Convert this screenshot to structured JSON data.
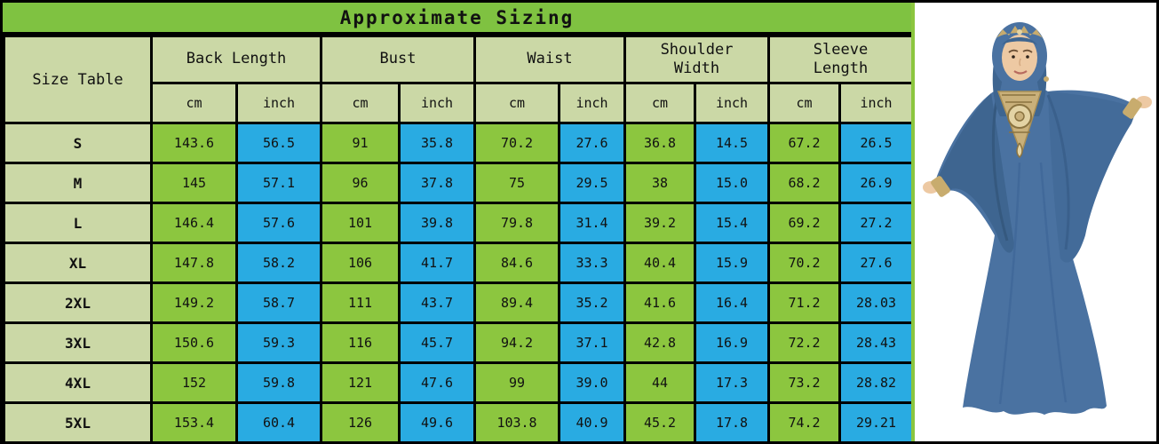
{
  "title": "Approximate Sizing",
  "table": {
    "corner_label": "Size Table",
    "groups": [
      {
        "label": "Back Length"
      },
      {
        "label": "Bust"
      },
      {
        "label": "Waist"
      },
      {
        "label": "Shoulder Width"
      },
      {
        "label": "Sleeve Length"
      }
    ],
    "unit_labels": {
      "cm": "cm",
      "inch": "inch"
    },
    "rows": [
      {
        "size": "S",
        "values": [
          "143.6",
          "56.5",
          "91",
          "35.8",
          "70.2",
          "27.6",
          "36.8",
          "14.5",
          "67.2",
          "26.5"
        ]
      },
      {
        "size": "M",
        "values": [
          "145",
          "57.1",
          "96",
          "37.8",
          "75",
          "29.5",
          "38",
          "15.0",
          "68.2",
          "26.9"
        ]
      },
      {
        "size": "L",
        "values": [
          "146.4",
          "57.6",
          "101",
          "39.8",
          "79.8",
          "31.4",
          "39.2",
          "15.4",
          "69.2",
          "27.2"
        ]
      },
      {
        "size": "XL",
        "values": [
          "147.8",
          "58.2",
          "106",
          "41.7",
          "84.6",
          "33.3",
          "40.4",
          "15.9",
          "70.2",
          "27.6"
        ]
      },
      {
        "size": "2XL",
        "values": [
          "149.2",
          "58.7",
          "111",
          "43.7",
          "89.4",
          "35.2",
          "41.6",
          "16.4",
          "71.2",
          "28.03"
        ]
      },
      {
        "size": "3XL",
        "values": [
          "150.6",
          "59.3",
          "116",
          "45.7",
          "94.2",
          "37.1",
          "42.8",
          "16.9",
          "72.2",
          "28.43"
        ]
      },
      {
        "size": "4XL",
        "values": [
          "152",
          "59.8",
          "121",
          "47.6",
          "99",
          "39.0",
          "44",
          "17.3",
          "73.2",
          "28.82"
        ]
      },
      {
        "size": "5XL",
        "values": [
          "153.4",
          "60.4",
          "126",
          "49.6",
          "103.8",
          "40.9",
          "45.2",
          "17.8",
          "74.2",
          "29.21"
        ]
      }
    ]
  },
  "model": {
    "alt": "Model wearing a blue batwing-sleeve kaftan abaya with gold chest embroidery, gold cuffs and a hijab with gold headpiece"
  },
  "colors": {
    "title_green": "#7FC241",
    "cell_green": "#8CC63F",
    "cell_blue": "#29ABE2",
    "header_sage": "#CBD8A6",
    "border_black": "#000000",
    "dress_blue": "#4A72A1",
    "dress_shadow": "#3E6590",
    "gold": "#C8AC6E",
    "skin": "#EDC9A3"
  }
}
